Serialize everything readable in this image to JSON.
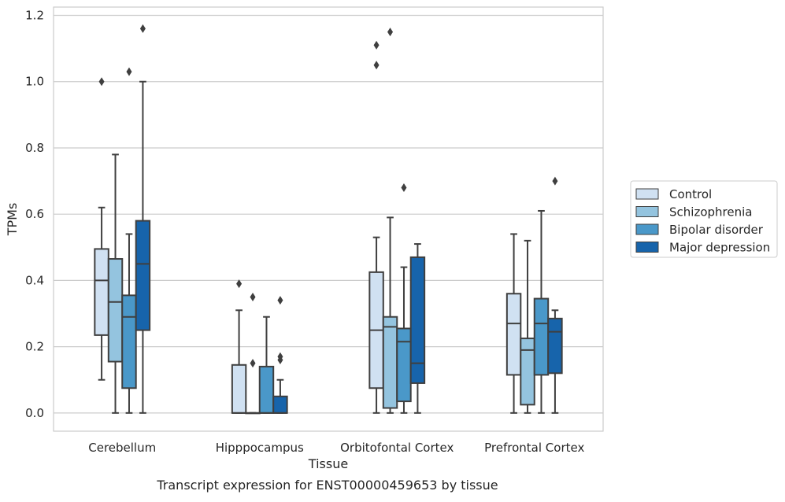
{
  "caption": "Transcript expression for ENST00000459653 by tissue",
  "chart_data": {
    "type": "box",
    "title": "",
    "xlabel": "Tissue",
    "ylabel": "TPMs",
    "ylim": [
      -0.055,
      1.225
    ],
    "yticks": [
      0.0,
      0.2,
      0.4,
      0.6,
      0.8,
      1.0,
      1.2
    ],
    "ytick_labels": [
      "0.0",
      "0.2",
      "0.4",
      "0.6",
      "0.8",
      "1.0",
      "1.2"
    ],
    "grid": "horizontal",
    "legend_position": "right",
    "categories": [
      "Cerebellum",
      "Hipppocampus",
      "Orbitofontal Cortex",
      "Prefrontal Cortex"
    ],
    "series": [
      {
        "name": "Control",
        "color": "#d0e1f2",
        "boxes": [
          {
            "whislo": 0.1,
            "q1": 0.235,
            "med": 0.4,
            "q3": 0.495,
            "whishi": 0.62,
            "fliers": [
              1.0
            ]
          },
          {
            "whislo": 0.0,
            "q1": 0.0,
            "med": 0.0,
            "q3": 0.145,
            "whishi": 0.31,
            "fliers": [
              0.39
            ]
          },
          {
            "whislo": 0.0,
            "q1": 0.075,
            "med": 0.25,
            "q3": 0.425,
            "whishi": 0.53,
            "fliers": [
              1.05,
              1.11
            ]
          },
          {
            "whislo": 0.0,
            "q1": 0.115,
            "med": 0.27,
            "q3": 0.36,
            "whishi": 0.54,
            "fliers": []
          }
        ]
      },
      {
        "name": "Schizophrenia",
        "color": "#94c4df",
        "boxes": [
          {
            "whislo": 0.0,
            "q1": 0.155,
            "med": 0.335,
            "q3": 0.465,
            "whishi": 0.78,
            "fliers": []
          },
          {
            "whislo": 0.0,
            "q1": 0.0,
            "med": 0.0,
            "q3": 0.0,
            "whishi": 0.0,
            "fliers": [
              0.35,
              0.15
            ]
          },
          {
            "whislo": 0.0,
            "q1": 0.015,
            "med": 0.26,
            "q3": 0.29,
            "whishi": 0.59,
            "fliers": [
              1.15
            ]
          },
          {
            "whislo": 0.0,
            "q1": 0.025,
            "med": 0.19,
            "q3": 0.225,
            "whishi": 0.52,
            "fliers": []
          }
        ]
      },
      {
        "name": "Bipolar disorder",
        "color": "#4a98c9",
        "boxes": [
          {
            "whislo": 0.0,
            "q1": 0.075,
            "med": 0.29,
            "q3": 0.355,
            "whishi": 0.54,
            "fliers": [
              1.03
            ]
          },
          {
            "whislo": 0.0,
            "q1": 0.0,
            "med": 0.0,
            "q3": 0.14,
            "whishi": 0.29,
            "fliers": []
          },
          {
            "whislo": 0.0,
            "q1": 0.035,
            "med": 0.215,
            "q3": 0.255,
            "whishi": 0.44,
            "fliers": [
              0.68
            ]
          },
          {
            "whislo": 0.0,
            "q1": 0.115,
            "med": 0.27,
            "q3": 0.345,
            "whishi": 0.61,
            "fliers": []
          }
        ]
      },
      {
        "name": "Major depression",
        "color": "#1764ab",
        "boxes": [
          {
            "whislo": 0.0,
            "q1": 0.25,
            "med": 0.45,
            "q3": 0.58,
            "whishi": 1.0,
            "fliers": [
              1.16
            ]
          },
          {
            "whislo": 0.0,
            "q1": 0.0,
            "med": 0.0,
            "q3": 0.05,
            "whishi": 0.1,
            "fliers": [
              0.34,
              0.17,
              0.16
            ]
          },
          {
            "whislo": 0.0,
            "q1": 0.09,
            "med": 0.15,
            "q3": 0.47,
            "whishi": 0.51,
            "fliers": []
          },
          {
            "whislo": 0.0,
            "q1": 0.12,
            "med": 0.245,
            "q3": 0.285,
            "whishi": 0.31,
            "fliers": [
              0.7
            ]
          }
        ]
      }
    ]
  }
}
